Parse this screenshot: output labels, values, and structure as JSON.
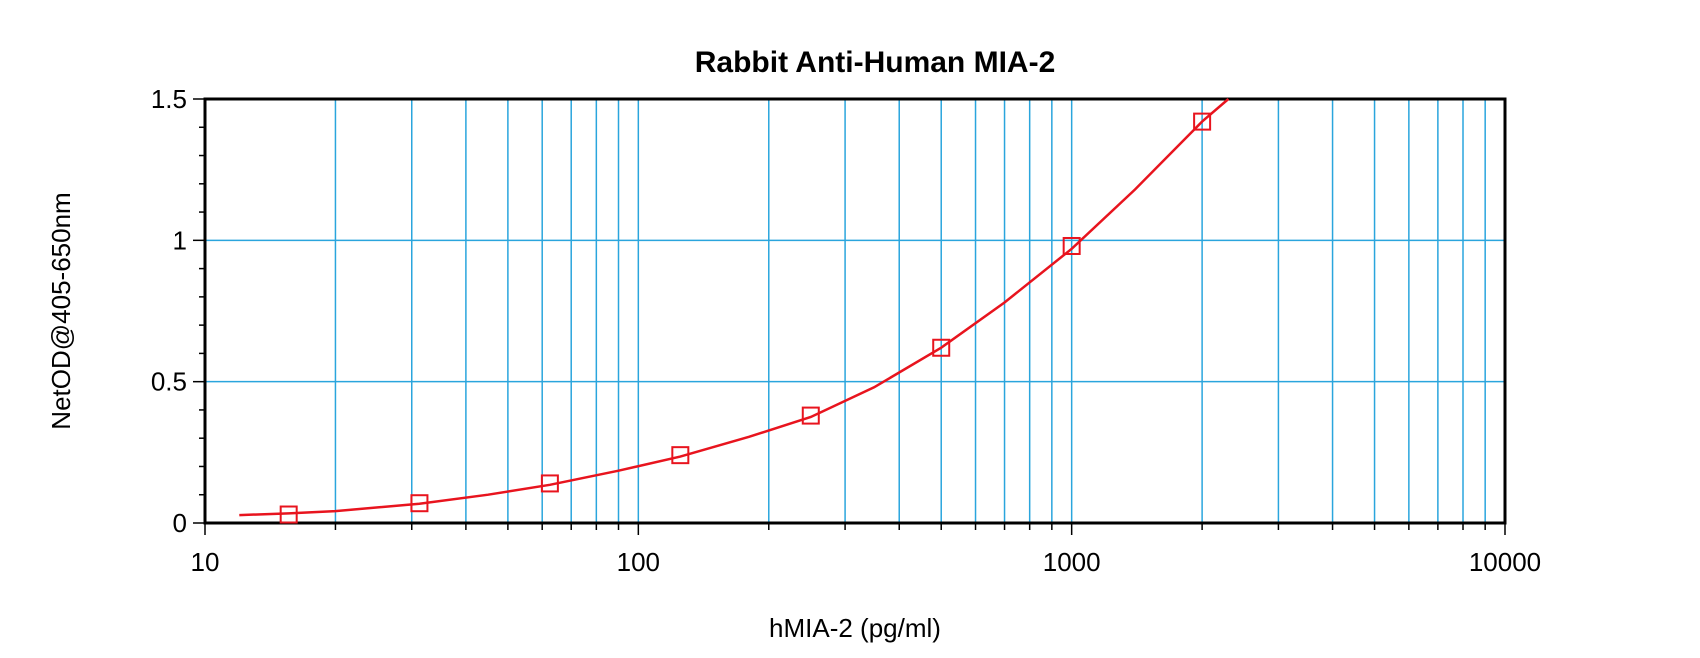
{
  "chart_data": {
    "type": "scatter",
    "title": "Rabbit Anti-Human MIA-2",
    "xlabel": "hMIA-2 (pg/ml)",
    "ylabel": "NetOD@405-650nm",
    "xscale": "log",
    "xlim": [
      10,
      10000
    ],
    "ylim": [
      0,
      1.5
    ],
    "x_ticks": [
      10,
      100,
      1000,
      10000
    ],
    "x_tick_labels": [
      "10",
      "100",
      "1000",
      "10000"
    ],
    "y_ticks": [
      0,
      0.5,
      1,
      1.5
    ],
    "y_tick_labels": [
      "0",
      "0.5",
      "1",
      "1.5"
    ],
    "grid": true,
    "legend": "none",
    "colors": {
      "series": "#e8141e",
      "grid": "#2aa5dd",
      "axis": "#000000"
    },
    "series": [
      {
        "marker": "square",
        "x": [
          15.6,
          31.25,
          62.5,
          125,
          250,
          500,
          1000,
          2000
        ],
        "y": [
          0.03,
          0.07,
          0.14,
          0.24,
          0.38,
          0.62,
          0.98,
          1.42
        ]
      }
    ],
    "fit_curve": {
      "x": [
        12,
        15.6,
        20,
        31.25,
        45,
        62.5,
        90,
        125,
        180,
        250,
        350,
        500,
        700,
        1000,
        1400,
        2000,
        2300
      ],
      "y": [
        0.028,
        0.034,
        0.042,
        0.068,
        0.1,
        0.135,
        0.185,
        0.235,
        0.305,
        0.375,
        0.48,
        0.62,
        0.78,
        0.97,
        1.18,
        1.42,
        1.5
      ]
    }
  }
}
